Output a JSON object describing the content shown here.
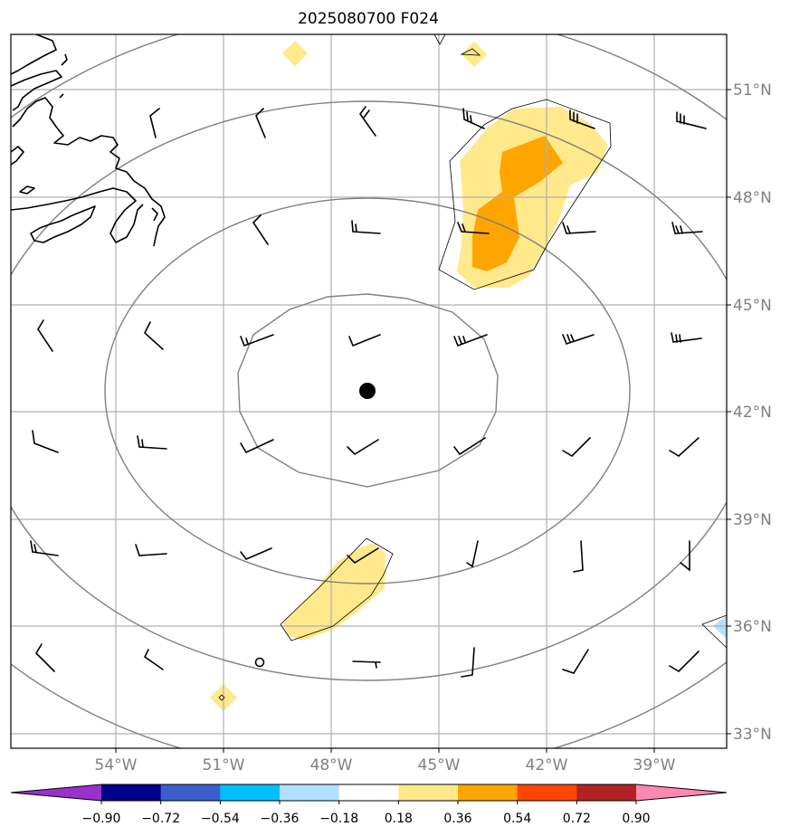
{
  "title": "2025080700 F024",
  "lon_labels": [
    "54°W",
    "51°W",
    "48°W",
    "45°W",
    "42°W",
    "39°W"
  ],
  "lat_labels": [
    "51°N",
    "48°N",
    "45°N",
    "42°N",
    "39°N",
    "36°N",
    "33°N"
  ],
  "map": {
    "projection": "azimuthal, centered on storm",
    "center_marker": {
      "lon": -47,
      "lat": 42.5
    },
    "range_rings": 4,
    "gridline_color": "#b0b0b0",
    "ring_color": "#808080",
    "coastline_color": "#000000"
  },
  "colorbar": {
    "tick_labels": [
      "−0.90",
      "−0.72",
      "−0.54",
      "−0.36",
      "−0.18",
      "0.18",
      "0.36",
      "0.54",
      "0.72",
      "0.90"
    ],
    "bounds": [
      -0.9,
      -0.72,
      -0.54,
      -0.36,
      -0.18,
      0.18,
      0.36,
      0.54,
      0.72,
      0.9
    ],
    "colors": [
      "#9932cc",
      "#00008b",
      "#3a5fcd",
      "#00bfff",
      "#b0e2ff",
      "#ffffff",
      "#ffe98c",
      "#ffa500",
      "#ff4500",
      "#b22222",
      "#ff88b0"
    ],
    "extend": "both"
  },
  "shaded_regions": [
    {
      "name": "northeast-region",
      "level": "0.18-0.36",
      "color": "#ffe98c"
    },
    {
      "name": "northeast-core",
      "level": "0.36-0.54",
      "color": "#ffa500"
    },
    {
      "name": "south-region",
      "level": "0.18-0.36",
      "color": "#ffe98c"
    },
    {
      "name": "edge-patch-east",
      "level": "-0.36--0.18",
      "color": "#b0e2ff"
    }
  ],
  "wind_barbs_icon": "wind-barb-icon"
}
